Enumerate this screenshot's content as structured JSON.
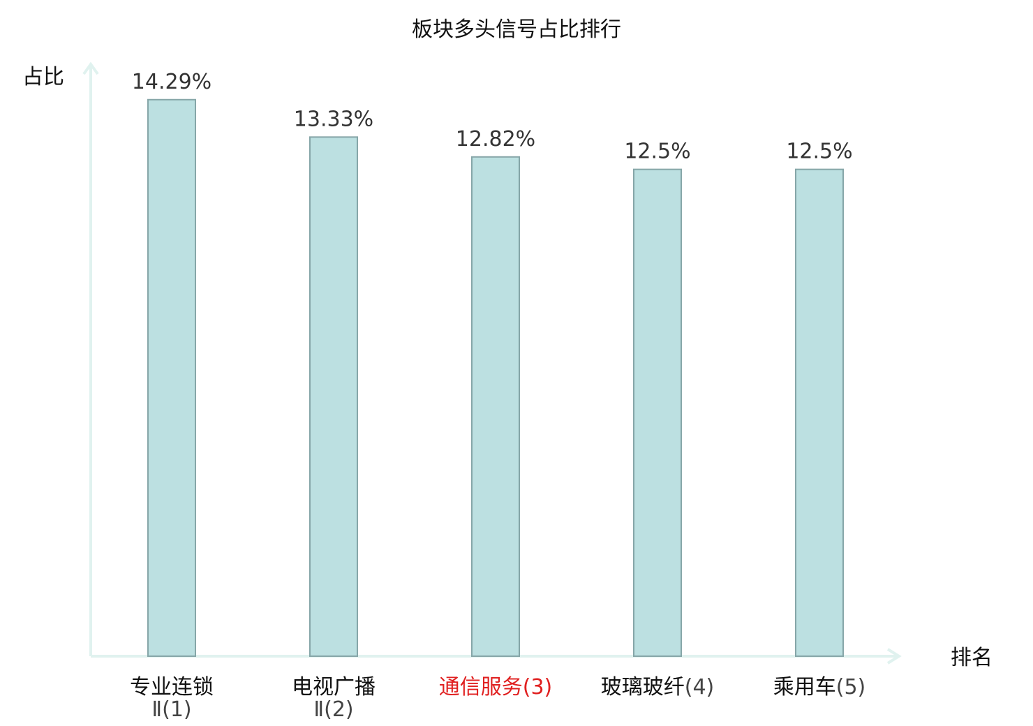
{
  "chart_data": {
    "type": "bar",
    "title": "板块多头信号占比排行",
    "ylabel": "占比",
    "xlabel": "排名",
    "ylim": [
      0,
      15.2
    ],
    "grid": false,
    "legend": "none",
    "categories": [
      {
        "name": "专业连锁",
        "rank_lines": [
          "Ⅱ(1)"
        ],
        "highlight": false
      },
      {
        "name": "电视广播",
        "rank_lines": [
          "Ⅱ(2)"
        ],
        "highlight": false
      },
      {
        "name": "通信服务",
        "rank_inline": "(3)",
        "highlight": true
      },
      {
        "name": "玻璃玻纤",
        "rank_inline": "(4)",
        "highlight": false
      },
      {
        "name": "乘用车",
        "rank_inline": "(5)",
        "highlight": false
      }
    ],
    "values": [
      14.29,
      13.33,
      12.82,
      12.5,
      12.5
    ],
    "value_labels": [
      "14.29%",
      "13.33%",
      "12.82%",
      "12.5%",
      "12.5%"
    ],
    "colors": {
      "bar_fill": "#bce0e1",
      "bar_stroke": "#86a6a8",
      "axis": "#e0f2ef",
      "highlight_text": "#e02020",
      "category_text": "#111111",
      "rank_text": "#444444"
    }
  }
}
